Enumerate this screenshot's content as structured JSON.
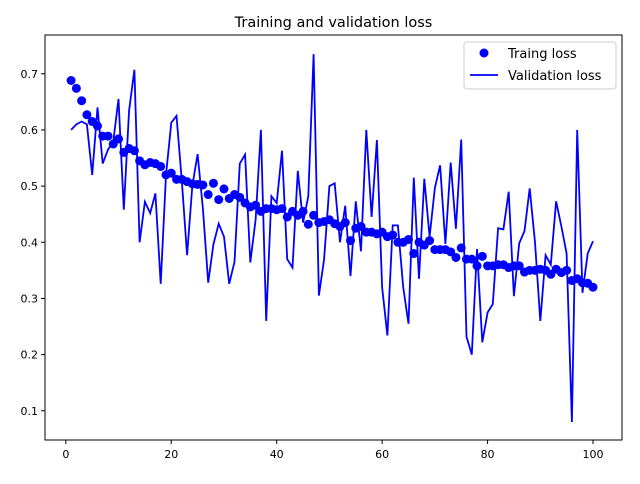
{
  "chart_data": {
    "type": "line",
    "title": "Training and validation loss",
    "xlabel": "",
    "ylabel": "",
    "xlim": [
      -3.95,
      105.5
    ],
    "ylim": [
      0.048,
      0.769
    ],
    "xticks": [
      0,
      20,
      40,
      60,
      80,
      100
    ],
    "yticks": [
      0.1,
      0.2,
      0.3,
      0.4,
      0.5,
      0.6,
      0.7
    ],
    "grid": false,
    "legend_placement": "upper-right",
    "color": "#0000ff",
    "series": [
      {
        "name": "Traing loss",
        "style": "markers",
        "values": [
          0.688,
          0.674,
          0.652,
          0.627,
          0.615,
          0.607,
          0.589,
          0.589,
          0.575,
          0.584,
          0.56,
          0.567,
          0.563,
          0.545,
          0.538,
          0.542,
          0.54,
          0.535,
          0.52,
          0.523,
          0.512,
          0.512,
          0.508,
          0.504,
          0.503,
          0.502,
          0.485,
          0.505,
          0.476,
          0.495,
          0.478,
          0.485,
          0.48,
          0.47,
          0.463,
          0.466,
          0.455,
          0.46,
          0.46,
          0.458,
          0.46,
          0.445,
          0.455,
          0.448,
          0.455,
          0.432,
          0.448,
          0.435,
          0.437,
          0.44,
          0.433,
          0.428,
          0.435,
          0.403,
          0.425,
          0.428,
          0.418,
          0.418,
          0.415,
          0.418,
          0.41,
          0.413,
          0.4,
          0.4,
          0.405,
          0.38,
          0.4,
          0.395,
          0.403,
          0.387,
          0.387,
          0.387,
          0.383,
          0.373,
          0.39,
          0.37,
          0.37,
          0.358,
          0.375,
          0.358,
          0.358,
          0.36,
          0.36,
          0.355,
          0.358,
          0.358,
          0.347,
          0.35,
          0.35,
          0.352,
          0.35,
          0.343,
          0.352,
          0.346,
          0.35,
          0.332,
          0.335,
          0.328,
          0.327,
          0.32
        ]
      },
      {
        "name": "Validation loss",
        "style": "line",
        "values": [
          0.6,
          0.61,
          0.615,
          0.61,
          0.52,
          0.64,
          0.54,
          0.565,
          0.58,
          0.655,
          0.458,
          0.635,
          0.707,
          0.4,
          0.472,
          0.452,
          0.487,
          0.326,
          0.52,
          0.613,
          0.625,
          0.51,
          0.377,
          0.5,
          0.557,
          0.46,
          0.328,
          0.396,
          0.433,
          0.41,
          0.326,
          0.365,
          0.54,
          0.556,
          0.364,
          0.44,
          0.6,
          0.26,
          0.482,
          0.47,
          0.563,
          0.37,
          0.355,
          0.527,
          0.435,
          0.482,
          0.735,
          0.305,
          0.37,
          0.5,
          0.505,
          0.4,
          0.465,
          0.34,
          0.473,
          0.384,
          0.6,
          0.445,
          0.582,
          0.32,
          0.234,
          0.43,
          0.43,
          0.32,
          0.255,
          0.515,
          0.335,
          0.513,
          0.41,
          0.497,
          0.537,
          0.397,
          0.542,
          0.424,
          0.583,
          0.232,
          0.2,
          0.388,
          0.222,
          0.275,
          0.29,
          0.425,
          0.423,
          0.49,
          0.304,
          0.398,
          0.42,
          0.496,
          0.4,
          0.26,
          0.377,
          0.36,
          0.473,
          0.428,
          0.38,
          0.08,
          0.6,
          0.31,
          0.38,
          0.402
        ]
      }
    ]
  }
}
